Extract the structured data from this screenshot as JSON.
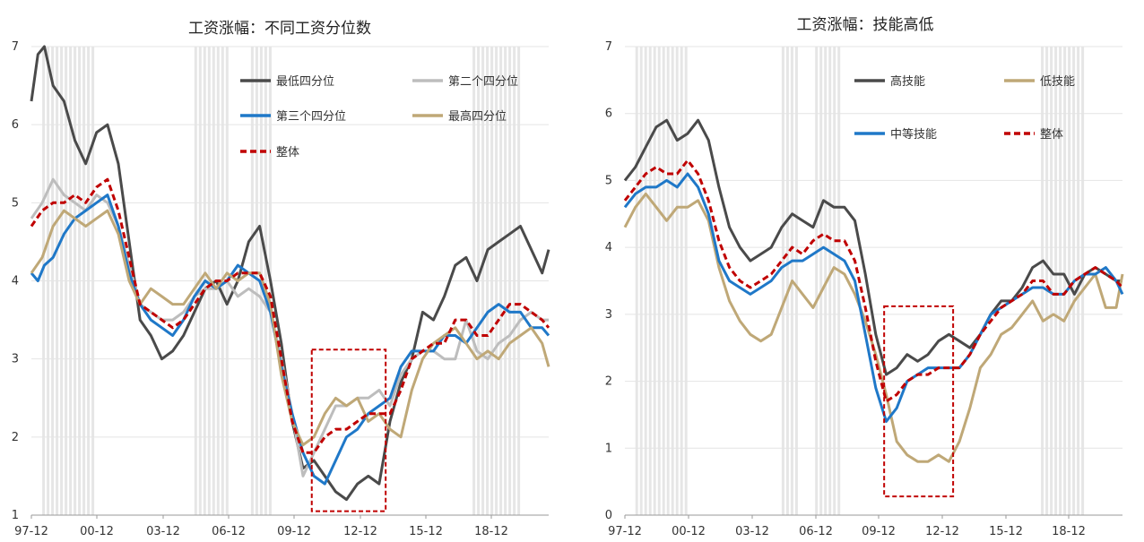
{
  "colors": {
    "dark": "#4a4a4a",
    "lightgray": "#bdbdbd",
    "blue": "#1f78c8",
    "tan": "#bfa877",
    "red": "#c00000",
    "shade": "#e6e6e6"
  },
  "chart_data": [
    {
      "type": "line",
      "title": "工资涨幅：不同工资分位数",
      "x_tick_labels": [
        "97-12",
        "00-12",
        "03-12",
        "06-12",
        "09-12",
        "12-12",
        "15-12",
        "18-12"
      ],
      "xlim": [
        1997.0,
        2020.8
      ],
      "y_tick_labels": [
        "1",
        "2",
        "3",
        "4",
        "5",
        "6",
        "7"
      ],
      "ylim": [
        1,
        7
      ],
      "grid": "horizontal",
      "legend": "top-right",
      "recession_shading": [
        [
          1997.5,
          1999.9
        ],
        [
          2004.5,
          2006.1
        ],
        [
          2007.1,
          2008.1
        ],
        [
          2017.3,
          2019.4
        ]
      ],
      "annotation_box": {
        "x": [
          2009.9,
          2013.3
        ],
        "y": [
          1.05,
          3.12
        ]
      },
      "series": [
        {
          "name": "最低四分位",
          "color": "#4a4a4a",
          "dash": false,
          "x": [
            1997.0,
            1997.3,
            1997.6,
            1998.0,
            1998.5,
            1999.0,
            1999.5,
            2000.0,
            2000.5,
            2001.0,
            2001.5,
            2002.0,
            2002.5,
            2003.0,
            2003.5,
            2004.0,
            2004.5,
            2005.0,
            2005.5,
            2006.0,
            2006.5,
            2007.0,
            2007.5,
            2008.0,
            2008.5,
            2009.0,
            2009.5,
            2010.0,
            2010.5,
            2011.0,
            2011.5,
            2012.0,
            2012.5,
            2013.0,
            2013.5,
            2014.0,
            2014.5,
            2015.0,
            2015.5,
            2016.0,
            2016.5,
            2017.0,
            2017.5,
            2018.0,
            2018.5,
            2019.0,
            2019.5,
            2020.0,
            2020.5,
            2020.8
          ],
          "y": [
            6.3,
            6.9,
            7.0,
            6.5,
            6.3,
            5.8,
            5.5,
            5.9,
            6.0,
            5.5,
            4.5,
            3.5,
            3.3,
            3.0,
            3.1,
            3.3,
            3.6,
            3.9,
            4.0,
            3.7,
            4.0,
            4.5,
            4.7,
            4.0,
            3.2,
            2.2,
            1.6,
            1.7,
            1.5,
            1.3,
            1.2,
            1.4,
            1.5,
            1.4,
            2.2,
            2.7,
            3.0,
            3.6,
            3.5,
            3.8,
            4.2,
            4.3,
            4.0,
            4.4,
            4.5,
            4.6,
            4.7,
            4.4,
            4.1,
            4.4
          ]
        },
        {
          "name": "第二个四分位",
          "color": "#bdbdbd",
          "dash": false,
          "x": [
            1997.0,
            1997.5,
            1998.0,
            1998.5,
            1999.0,
            1999.5,
            2000.0,
            2000.5,
            2001.0,
            2001.5,
            2002.0,
            2002.5,
            2003.0,
            2003.5,
            2004.0,
            2004.5,
            2005.0,
            2005.5,
            2006.0,
            2006.5,
            2007.0,
            2007.5,
            2008.0,
            2008.5,
            2009.0,
            2009.5,
            2010.0,
            2010.5,
            2011.0,
            2011.5,
            2012.0,
            2012.5,
            2013.0,
            2013.5,
            2014.0,
            2014.5,
            2015.0,
            2015.5,
            2016.0,
            2016.5,
            2017.0,
            2017.5,
            2018.0,
            2018.5,
            2019.0,
            2019.5,
            2020.0,
            2020.5,
            2020.8
          ],
          "y": [
            4.8,
            5.0,
            5.3,
            5.1,
            5.0,
            4.9,
            5.1,
            5.0,
            4.7,
            4.2,
            3.7,
            3.6,
            3.5,
            3.5,
            3.6,
            3.8,
            3.9,
            3.9,
            4.0,
            3.8,
            3.9,
            3.8,
            3.6,
            3.0,
            2.3,
            1.5,
            1.8,
            2.1,
            2.4,
            2.4,
            2.5,
            2.5,
            2.6,
            2.4,
            2.8,
            3.0,
            3.1,
            3.1,
            3.0,
            3.0,
            3.5,
            3.1,
            3.0,
            3.2,
            3.3,
            3.5,
            3.6,
            3.5,
            3.5
          ]
        },
        {
          "name": "第三个四分位",
          "color": "#1f78c8",
          "dash": false,
          "x": [
            1997.0,
            1997.3,
            1997.6,
            1998.0,
            1998.5,
            1999.0,
            1999.5,
            2000.0,
            2000.5,
            2001.0,
            2001.5,
            2002.0,
            2002.5,
            2003.0,
            2003.5,
            2004.0,
            2004.5,
            2005.0,
            2005.5,
            2006.0,
            2006.5,
            2007.0,
            2007.5,
            2008.0,
            2008.5,
            2009.0,
            2009.5,
            2010.0,
            2010.5,
            2011.0,
            2011.5,
            2012.0,
            2012.5,
            2013.0,
            2013.5,
            2014.0,
            2014.5,
            2015.0,
            2015.5,
            2016.0,
            2016.5,
            2017.0,
            2017.5,
            2018.0,
            2018.5,
            2019.0,
            2019.5,
            2020.0,
            2020.5,
            2020.8
          ],
          "y": [
            4.1,
            4.0,
            4.2,
            4.3,
            4.6,
            4.8,
            4.9,
            5.0,
            5.1,
            4.7,
            4.1,
            3.7,
            3.5,
            3.4,
            3.3,
            3.5,
            3.8,
            4.0,
            3.9,
            4.0,
            4.2,
            4.1,
            4.0,
            3.6,
            2.9,
            2.3,
            1.8,
            1.5,
            1.4,
            1.7,
            2.0,
            2.1,
            2.3,
            2.4,
            2.5,
            2.9,
            3.1,
            3.1,
            3.1,
            3.3,
            3.3,
            3.2,
            3.4,
            3.6,
            3.7,
            3.6,
            3.6,
            3.4,
            3.4,
            3.3
          ]
        },
        {
          "name": "最高四分位",
          "color": "#bfa877",
          "dash": false,
          "x": [
            1997.0,
            1997.5,
            1998.0,
            1998.5,
            1999.0,
            1999.5,
            2000.0,
            2000.5,
            2001.0,
            2001.5,
            2002.0,
            2002.5,
            2003.0,
            2003.5,
            2004.0,
            2004.5,
            2005.0,
            2005.5,
            2006.0,
            2006.5,
            2007.0,
            2007.5,
            2008.0,
            2008.5,
            2009.0,
            2009.5,
            2010.0,
            2010.5,
            2011.0,
            2011.5,
            2012.0,
            2012.5,
            2013.0,
            2013.5,
            2014.0,
            2014.5,
            2015.0,
            2015.5,
            2016.0,
            2016.5,
            2017.0,
            2017.5,
            2018.0,
            2018.5,
            2019.0,
            2019.5,
            2020.0,
            2020.5,
            2020.8
          ],
          "y": [
            4.1,
            4.3,
            4.7,
            4.9,
            4.8,
            4.7,
            4.8,
            4.9,
            4.6,
            4.0,
            3.7,
            3.9,
            3.8,
            3.7,
            3.7,
            3.9,
            4.1,
            3.9,
            4.1,
            4.0,
            4.1,
            4.1,
            3.7,
            2.8,
            2.2,
            1.9,
            2.0,
            2.3,
            2.5,
            2.4,
            2.5,
            2.2,
            2.3,
            2.1,
            2.0,
            2.6,
            3.0,
            3.2,
            3.3,
            3.4,
            3.2,
            3.0,
            3.1,
            3.0,
            3.2,
            3.3,
            3.4,
            3.2,
            2.9
          ]
        },
        {
          "name": "整体",
          "color": "#c00000",
          "dash": true,
          "x": [
            1997.0,
            1997.5,
            1998.0,
            1998.5,
            1999.0,
            1999.5,
            2000.0,
            2000.5,
            2001.0,
            2001.5,
            2002.0,
            2002.5,
            2003.0,
            2003.5,
            2004.0,
            2004.5,
            2005.0,
            2005.5,
            2006.0,
            2006.5,
            2007.0,
            2007.5,
            2008.0,
            2008.5,
            2009.0,
            2009.5,
            2010.0,
            2010.5,
            2011.0,
            2011.5,
            2012.0,
            2012.5,
            2013.0,
            2013.5,
            2014.0,
            2014.5,
            2015.0,
            2015.5,
            2016.0,
            2016.5,
            2017.0,
            2017.5,
            2018.0,
            2018.5,
            2019.0,
            2019.5,
            2020.0,
            2020.5,
            2020.8
          ],
          "y": [
            4.7,
            4.9,
            5.0,
            5.0,
            5.1,
            5.0,
            5.2,
            5.3,
            4.9,
            4.3,
            3.7,
            3.6,
            3.5,
            3.4,
            3.5,
            3.7,
            3.9,
            4.0,
            4.0,
            4.1,
            4.1,
            4.1,
            3.8,
            3.0,
            2.2,
            1.8,
            1.8,
            2.0,
            2.1,
            2.1,
            2.2,
            2.3,
            2.3,
            2.3,
            2.6,
            3.0,
            3.1,
            3.2,
            3.2,
            3.5,
            3.5,
            3.3,
            3.3,
            3.5,
            3.7,
            3.7,
            3.6,
            3.5,
            3.4
          ]
        }
      ]
    },
    {
      "type": "line",
      "title": "工资涨幅：技能高低",
      "x_tick_labels": [
        "97-12",
        "00-12",
        "03-12",
        "06-12",
        "09-12",
        "12-12",
        "15-12",
        "18-12"
      ],
      "xlim": [
        1997.0,
        2020.8
      ],
      "y_tick_labels": [
        "0",
        "1",
        "2",
        "3",
        "4",
        "5",
        "6",
        "7"
      ],
      "ylim": [
        0,
        7
      ],
      "grid": "horizontal",
      "legend": "top-right",
      "recession_shading": [
        [
          1997.5,
          1999.9
        ],
        [
          2004.5,
          2005.2
        ],
        [
          2006.1,
          2007.2
        ],
        [
          2016.9,
          2018.9
        ]
      ],
      "annotation_box": {
        "x": [
          2009.4,
          2012.7
        ],
        "y": [
          0.28,
          3.12
        ]
      },
      "series": [
        {
          "name": "高技能",
          "color": "#4a4a4a",
          "dash": false,
          "x": [
            1997.0,
            1997.5,
            1998.0,
            1998.5,
            1999.0,
            1999.5,
            2000.0,
            2000.5,
            2001.0,
            2001.5,
            2002.0,
            2002.5,
            2003.0,
            2003.5,
            2004.0,
            2004.5,
            2005.0,
            2005.5,
            2006.0,
            2006.5,
            2007.0,
            2007.5,
            2008.0,
            2008.5,
            2009.0,
            2009.5,
            2010.0,
            2010.5,
            2011.0,
            2011.5,
            2012.0,
            2012.5,
            2013.0,
            2013.5,
            2014.0,
            2014.5,
            2015.0,
            2015.5,
            2016.0,
            2016.5,
            2017.0,
            2017.5,
            2018.0,
            2018.5,
            2019.0,
            2019.5,
            2020.0,
            2020.5,
            2020.8
          ],
          "y": [
            5.0,
            5.2,
            5.5,
            5.8,
            5.9,
            5.6,
            5.7,
            5.9,
            5.6,
            4.9,
            4.3,
            4.0,
            3.8,
            3.9,
            4.0,
            4.3,
            4.5,
            4.4,
            4.3,
            4.7,
            4.6,
            4.6,
            4.4,
            3.6,
            2.7,
            2.1,
            2.2,
            2.4,
            2.3,
            2.4,
            2.6,
            2.7,
            2.6,
            2.5,
            2.7,
            3.0,
            3.2,
            3.2,
            3.4,
            3.7,
            3.8,
            3.6,
            3.6,
            3.3,
            3.6,
            3.7,
            3.6,
            3.5,
            3.5
          ]
        },
        {
          "name": "低技能",
          "color": "#bfa877",
          "dash": false,
          "x": [
            1997.0,
            1997.5,
            1998.0,
            1998.5,
            1999.0,
            1999.5,
            2000.0,
            2000.5,
            2001.0,
            2001.5,
            2002.0,
            2002.5,
            2003.0,
            2003.5,
            2004.0,
            2004.5,
            2005.0,
            2005.5,
            2006.0,
            2006.5,
            2007.0,
            2007.5,
            2008.0,
            2008.5,
            2009.0,
            2009.5,
            2010.0,
            2010.5,
            2011.0,
            2011.5,
            2012.0,
            2012.5,
            2013.0,
            2013.5,
            2014.0,
            2014.5,
            2015.0,
            2015.5,
            2016.0,
            2016.5,
            2017.0,
            2017.5,
            2018.0,
            2018.5,
            2019.0,
            2019.5,
            2020.0,
            2020.5,
            2020.8
          ],
          "y": [
            4.3,
            4.6,
            4.8,
            4.6,
            4.4,
            4.6,
            4.6,
            4.7,
            4.4,
            3.7,
            3.2,
            2.9,
            2.7,
            2.6,
            2.7,
            3.1,
            3.5,
            3.3,
            3.1,
            3.4,
            3.7,
            3.6,
            3.3,
            2.9,
            2.4,
            1.8,
            1.1,
            0.9,
            0.8,
            0.8,
            0.9,
            0.8,
            1.1,
            1.6,
            2.2,
            2.4,
            2.7,
            2.8,
            3.0,
            3.2,
            2.9,
            3.0,
            2.9,
            3.2,
            3.4,
            3.6,
            3.1,
            3.1,
            3.6
          ]
        },
        {
          "name": "中等技能",
          "color": "#1f78c8",
          "dash": false,
          "x": [
            1997.0,
            1997.5,
            1998.0,
            1998.5,
            1999.0,
            1999.5,
            2000.0,
            2000.5,
            2001.0,
            2001.5,
            2002.0,
            2002.5,
            2003.0,
            2003.5,
            2004.0,
            2004.5,
            2005.0,
            2005.5,
            2006.0,
            2006.5,
            2007.0,
            2007.5,
            2008.0,
            2008.5,
            2009.0,
            2009.5,
            2010.0,
            2010.5,
            2011.0,
            2011.5,
            2012.0,
            2012.5,
            2013.0,
            2013.5,
            2014.0,
            2014.5,
            2015.0,
            2015.5,
            2016.0,
            2016.5,
            2017.0,
            2017.5,
            2018.0,
            2018.5,
            2019.0,
            2019.5,
            2020.0,
            2020.5,
            2020.8
          ],
          "y": [
            4.6,
            4.8,
            4.9,
            4.9,
            5.0,
            4.9,
            5.1,
            4.9,
            4.5,
            3.8,
            3.5,
            3.4,
            3.3,
            3.4,
            3.5,
            3.7,
            3.8,
            3.8,
            3.9,
            4.0,
            3.9,
            3.8,
            3.5,
            2.7,
            1.9,
            1.4,
            1.6,
            2.0,
            2.1,
            2.2,
            2.2,
            2.2,
            2.2,
            2.4,
            2.7,
            3.0,
            3.1,
            3.2,
            3.3,
            3.4,
            3.4,
            3.3,
            3.3,
            3.5,
            3.6,
            3.6,
            3.7,
            3.5,
            3.3
          ]
        },
        {
          "name": "整体",
          "color": "#c00000",
          "dash": true,
          "x": [
            1997.0,
            1997.5,
            1998.0,
            1998.5,
            1999.0,
            1999.5,
            2000.0,
            2000.5,
            2001.0,
            2001.5,
            2002.0,
            2002.5,
            2003.0,
            2003.5,
            2004.0,
            2004.5,
            2005.0,
            2005.5,
            2006.0,
            2006.5,
            2007.0,
            2007.5,
            2008.0,
            2008.5,
            2009.0,
            2009.5,
            2010.0,
            2010.5,
            2011.0,
            2011.5,
            2012.0,
            2012.5,
            2013.0,
            2013.5,
            2014.0,
            2014.5,
            2015.0,
            2015.5,
            2016.0,
            2016.5,
            2017.0,
            2017.5,
            2018.0,
            2018.5,
            2019.0,
            2019.5,
            2020.0,
            2020.5,
            2020.8
          ],
          "y": [
            4.7,
            4.9,
            5.1,
            5.2,
            5.1,
            5.1,
            5.3,
            5.1,
            4.7,
            4.1,
            3.7,
            3.5,
            3.4,
            3.5,
            3.6,
            3.8,
            4.0,
            3.9,
            4.1,
            4.2,
            4.1,
            4.1,
            3.8,
            3.1,
            2.3,
            1.7,
            1.8,
            2.0,
            2.1,
            2.1,
            2.2,
            2.2,
            2.2,
            2.4,
            2.7,
            2.9,
            3.1,
            3.2,
            3.3,
            3.5,
            3.5,
            3.3,
            3.3,
            3.5,
            3.6,
            3.7,
            3.6,
            3.5,
            3.4
          ]
        }
      ]
    }
  ]
}
